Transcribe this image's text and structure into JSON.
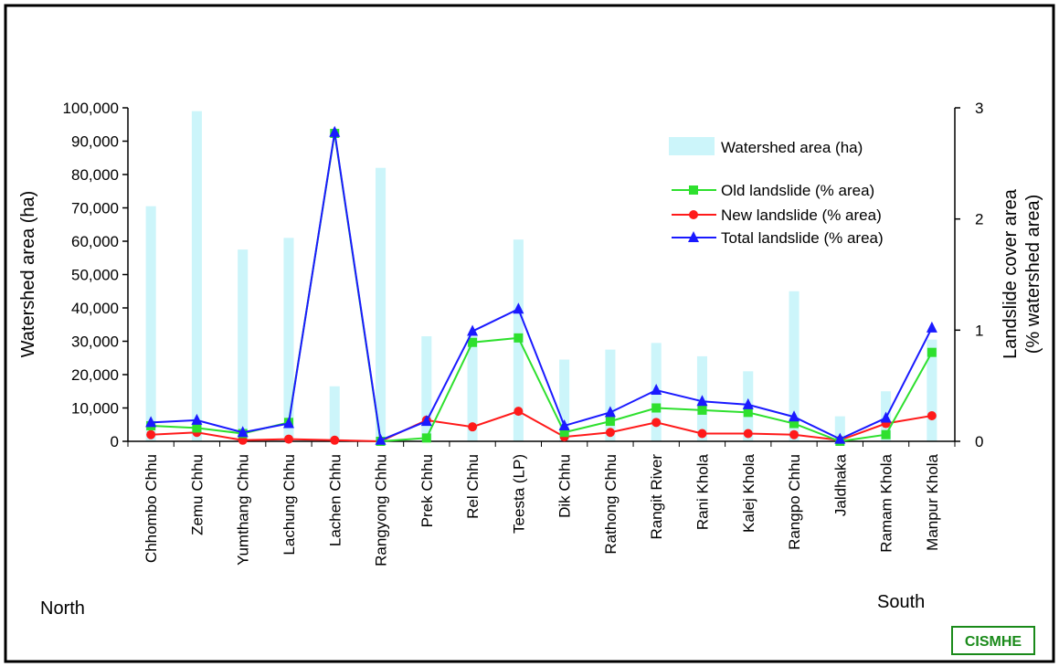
{
  "chart_data": {
    "type": "bar+line",
    "categories": [
      "Chhombo Chhu",
      "Zemu Chhu",
      "Yumthang Chhu",
      "Lachung Chhu",
      "Lachen Chhu",
      "Rangyong Chhu",
      "Prek Chhu",
      "Rel Chhu",
      "Teesta (LP)",
      "Dik Chhu",
      "Rathong Chhu",
      "Rangit River",
      "Rani Khola",
      "Kalej Khola",
      "Rangpo Chhu",
      "Jaldhaka",
      "Ramam Khola",
      "Manpur Khola"
    ],
    "bars": {
      "name": "Watershed area (ha)",
      "axis": "left",
      "color": "#ccf5fa",
      "values": [
        70500,
        99000,
        57500,
        61000,
        16500,
        82000,
        31500,
        31500,
        60500,
        24500,
        27500,
        29500,
        25500,
        21000,
        45000,
        7500,
        15000,
        30500
      ]
    },
    "series": [
      {
        "name": "Old landslide (% area)",
        "axis": "right",
        "color": "#2ee02e",
        "marker": "square",
        "values": [
          0.14,
          0.12,
          0.07,
          0.17,
          2.77,
          0.0,
          0.03,
          0.89,
          0.93,
          0.08,
          0.18,
          0.3,
          0.28,
          0.26,
          0.16,
          0.0,
          0.06,
          0.8
        ]
      },
      {
        "name": "New landslide (% area)",
        "axis": "right",
        "color": "#ff1a1a",
        "marker": "circle",
        "values": [
          0.06,
          0.08,
          0.01,
          0.02,
          0.01,
          0.0,
          0.19,
          0.13,
          0.27,
          0.04,
          0.08,
          0.17,
          0.07,
          0.07,
          0.06,
          0.01,
          0.16,
          0.23
        ]
      },
      {
        "name": "Total landslide (% area)",
        "axis": "right",
        "color": "#1a1aff",
        "marker": "triangle",
        "values": [
          0.17,
          0.19,
          0.08,
          0.16,
          2.78,
          0.01,
          0.18,
          0.99,
          1.19,
          0.14,
          0.26,
          0.46,
          0.36,
          0.33,
          0.22,
          0.02,
          0.21,
          1.02
        ]
      }
    ],
    "y_left": {
      "label": "Watershed area (ha)",
      "range": [
        0,
        100000
      ],
      "ticks": [
        "0",
        "10,000",
        "20,000",
        "30,000",
        "40,000",
        "50,000",
        "60,000",
        "70,000",
        "80,000",
        "90,000",
        "100,000"
      ]
    },
    "y_right": {
      "label_lines": [
        "Landslide cover area",
        "(% watershed area)"
      ],
      "range": [
        0,
        3
      ],
      "ticks": [
        "0",
        "1",
        "2",
        "3"
      ]
    },
    "grid": false,
    "legend": "top-right"
  },
  "annotations": {
    "north": "North",
    "south": "South",
    "badge": "CISMHE"
  }
}
